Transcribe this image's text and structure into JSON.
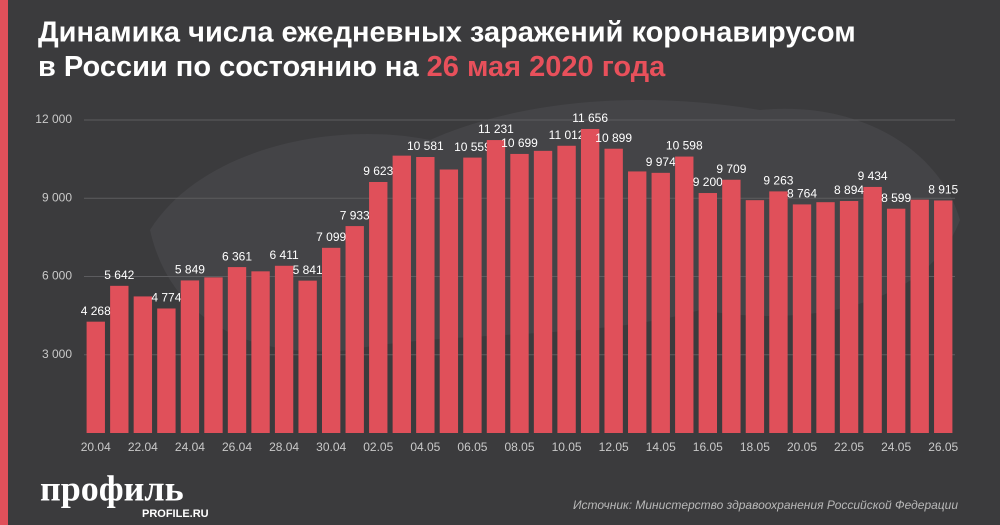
{
  "chart_data": {
    "type": "bar",
    "title_line1": "Динамика числа ежедневных заражений коронавирусом",
    "title_line2": "в России по состоянию на",
    "title_highlight": "26 мая 2020 года",
    "source": "Источник: Министерство здравоохранения Российской Федерации",
    "logo": "профиль",
    "logo_url": "PROFILE.RU",
    "color": "#e0505a",
    "grid": true,
    "categories": [
      "20.04",
      null,
      "22.04",
      null,
      "24.04",
      null,
      "26.04",
      null,
      "28.04",
      null,
      "30.04",
      null,
      "02.05",
      null,
      "04.05",
      null,
      "06.05",
      null,
      "08.05",
      null,
      "10.05",
      null,
      "12.05",
      null,
      "14.05",
      null,
      "16.05",
      null,
      "18.05",
      null,
      "20.05",
      null,
      "22.05",
      null,
      "24.05",
      null,
      "26.05"
    ],
    "values": [
      4268,
      5642,
      5236,
      4774,
      5849,
      5966,
      6361,
      6198,
      6411,
      5841,
      7099,
      7933,
      9623,
      10633,
      10581,
      10102,
      10559,
      11231,
      10699,
      10817,
      11012,
      11656,
      10899,
      10028,
      9974,
      10598,
      9200,
      9709,
      8926,
      9263,
      8764,
      8849,
      8894,
      9434,
      8599,
      8946,
      8915
    ],
    "value_labels": [
      "4 268",
      "5 642",
      null,
      "4 774",
      "5 849",
      null,
      "6 361",
      null,
      "6 411",
      "5 841",
      "7 099",
      "7 933",
      "9 623",
      null,
      "10 581",
      null,
      "10 559",
      "11 231",
      "10 699",
      null,
      "11 012",
      "11 656",
      "10 899",
      null,
      "9 974",
      "10 598",
      "9 200",
      "9 709",
      null,
      "9 263",
      "8 764",
      null,
      "8 894",
      "9 434",
      "8 599",
      null,
      "8 915"
    ],
    "ylim": [
      0,
      12000
    ],
    "yticks": [
      {
        "value": 3000,
        "label": "3 000"
      },
      {
        "value": 6000,
        "label": "6 000"
      },
      {
        "value": 9000,
        "label": "9 000"
      },
      {
        "value": 12000,
        "label": "12 000"
      }
    ]
  }
}
